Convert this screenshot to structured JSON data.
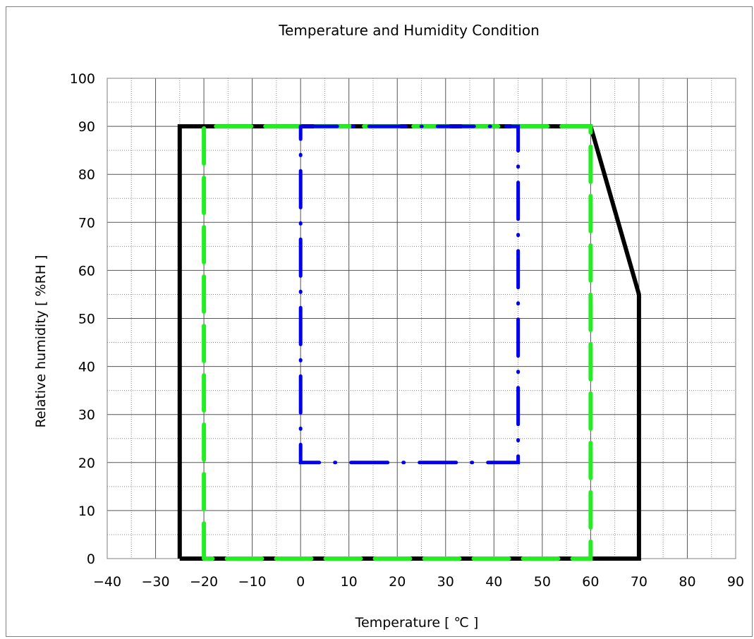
{
  "chart_data": {
    "type": "line",
    "title": "Temperature and Humidity Condition",
    "xlabel": "Temperature [ ℃ ]",
    "ylabel": "Relative humidity [ %RH ]",
    "xlim": [
      -40,
      90
    ],
    "ylim": [
      0,
      100
    ],
    "x_ticks": [
      -40,
      -30,
      -20,
      -10,
      0,
      10,
      20,
      30,
      40,
      50,
      60,
      70,
      80,
      90
    ],
    "y_ticks": [
      0,
      10,
      20,
      30,
      40,
      50,
      60,
      70,
      80,
      90,
      100
    ],
    "x_minor_step": 5,
    "y_minor_step": 5,
    "grid": true,
    "legend": "none",
    "series": [
      {
        "color": "#000000",
        "style": "solid",
        "points": [
          [
            -25,
            0
          ],
          [
            -25,
            90
          ],
          [
            60,
            90
          ],
          [
            70,
            55
          ],
          [
            70,
            0
          ],
          [
            -25,
            0
          ]
        ]
      },
      {
        "color": "#22ee22",
        "style": "long-dash",
        "points": [
          [
            -20,
            0
          ],
          [
            -20,
            90
          ],
          [
            60,
            90
          ],
          [
            60,
            0
          ],
          [
            -20,
            0
          ]
        ]
      },
      {
        "color": "#0000ee",
        "style": "dash-dot",
        "points": [
          [
            0,
            90
          ],
          [
            45,
            90
          ],
          [
            45,
            20
          ],
          [
            0,
            20
          ],
          [
            0,
            90
          ]
        ]
      }
    ]
  }
}
